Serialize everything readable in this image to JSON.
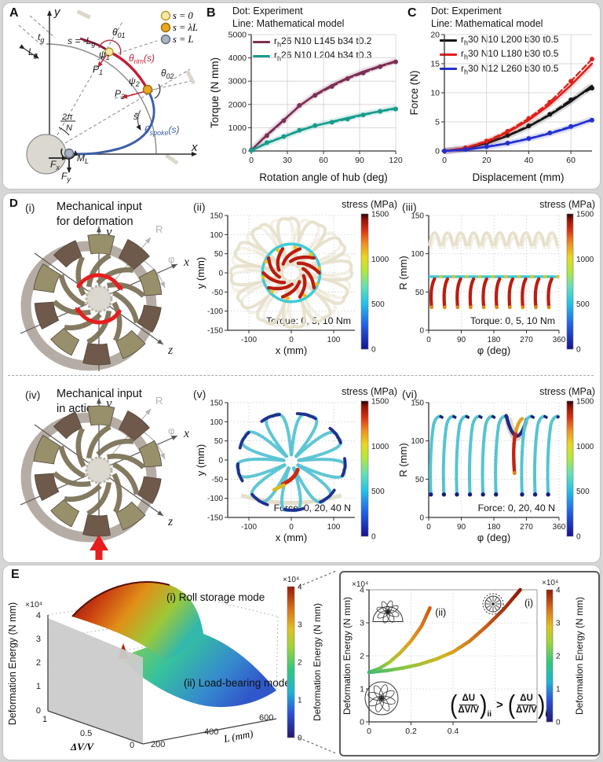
{
  "panels": {
    "A": {
      "label": "A",
      "legend": [
        {
          "color": "#f6e8a6",
          "edge": "#b89a28",
          "label": "s = 0"
        },
        {
          "color": "#eaa71f",
          "edge": "#9a6a10",
          "label": "s = λL"
        },
        {
          "color": "#a9b2c0",
          "edge": "#5f6b80",
          "label": "s = L"
        }
      ],
      "labels": {
        "x_axis": "x",
        "y_axis": "y",
        "tg": {
          "m": "t",
          "s": "g"
        },
        "Lg": {
          "m": "L",
          "s": "g"
        },
        "s_minus": {
          "m": "s = -L",
          "s": "g"
        },
        "theta01": {
          "m": "θ",
          "s": "01"
        },
        "psi1": {
          "m": "ψ",
          "s": "1"
        },
        "P1": {
          "m": "P",
          "s": "1"
        },
        "theta_rim": {
          "m": "θ",
          "s": "rim",
          "r": "(s)"
        },
        "psi2": {
          "m": "ψ",
          "s": "2"
        },
        "theta02": {
          "m": "θ",
          "s": "02"
        },
        "P2": {
          "m": "P",
          "s": "2"
        },
        "s_tilde": "s̃",
        "theta_spoke": {
          "m": "θ",
          "s": "spoke",
          "r": "(s)"
        },
        "frac_num": "2π",
        "frac_den": "N",
        "Fx": {
          "m": "F",
          "s": "x"
        },
        "ML": {
          "m": "M",
          "s": "L"
        },
        "Fy": {
          "m": "F",
          "s": "y"
        }
      }
    },
    "B": {
      "label": "B",
      "note1": "Dot: Experiment",
      "note2": "Line: Mathematical model",
      "legend": [
        {
          "pre": "r",
          "sub": "h",
          "rest": "26 N10 L145 b34 t0.2"
        },
        {
          "pre": "r",
          "sub": "h",
          "rest": "26 N10 L204 b34 t0.3"
        }
      ]
    },
    "C": {
      "label": "C",
      "note1": "Dot: Experiment",
      "note2": "Line: Mathematical model",
      "legend": [
        {
          "pre": "r",
          "sub": "h",
          "rest": "30 N10 L200 b30 t0.5"
        },
        {
          "pre": "r",
          "sub": "h",
          "rest": "30 N10 L180 b30 t0.5"
        },
        {
          "pre": "r",
          "sub": "h",
          "rest": "30 N12 L260 b30 t0.5"
        }
      ]
    },
    "D": {
      "label": "D",
      "stress_label": "stress (MPa)",
      "axes": {
        "x": "x",
        "y": "y",
        "z": "z",
        "R": "R",
        "phi": "φ"
      },
      "rows": [
        {
          "tag": "(i)",
          "title1": "Mechanical input",
          "title2": "for deformation"
        },
        {
          "tag": "(iv)",
          "title1": "Mechanical input",
          "title2": "in action"
        }
      ],
      "plot_tags": {
        "ii": "(ii)",
        "iii": "(iii)",
        "v": "(v)",
        "vi": "(vi)"
      }
    },
    "E": {
      "label": "E",
      "formula": {
        "lpar": "(",
        "rpar": ")",
        "num": "ΔU",
        "den": "ΔV/V",
        "sub_left": "ii",
        "gt": ">",
        "sub_right": "i"
      }
    }
  },
  "chart_data": [
    {
      "id": "B",
      "type": "line",
      "xlabel": "Rotation angle of hub (deg)",
      "ylabel": "Torque (N mm)",
      "xlim": [
        0,
        120
      ],
      "ylim": [
        0,
        5000
      ],
      "xticks": [
        0,
        30,
        60,
        90,
        120
      ],
      "yticks": [
        0,
        1000,
        2000,
        3000,
        4000,
        5000
      ],
      "series": [
        {
          "name": "rh26 N10 L145 b34 t0.2 model",
          "color": "#7c2f55",
          "style": "solid",
          "band": true,
          "x": [
            0,
            13,
            27,
            40,
            53,
            67,
            80,
            93,
            107,
            120
          ],
          "y": [
            30,
            690,
            1330,
            1930,
            2420,
            2820,
            3140,
            3410,
            3650,
            3860
          ]
        },
        {
          "name": "rh26 N10 L145 b34 t0.2 experiment",
          "color": "#7c2f55",
          "style": "dash",
          "x": [
            0,
            13,
            27,
            40,
            53,
            67,
            80,
            93,
            107,
            120
          ],
          "y": [
            40,
            660,
            1300,
            1960,
            2390,
            2770,
            3110,
            3350,
            3620,
            3830
          ]
        },
        {
          "name": "rh26 N10 L204 b34 t0.3 model",
          "color": "#189c8c",
          "style": "solid",
          "band": true,
          "x": [
            0,
            13,
            27,
            40,
            53,
            67,
            80,
            93,
            107,
            120
          ],
          "y": [
            20,
            330,
            610,
            865,
            1080,
            1260,
            1420,
            1570,
            1710,
            1840
          ]
        },
        {
          "name": "rh26 N10 L204 b34 t0.3 experiment",
          "color": "#189c8c",
          "style": "dash",
          "x": [
            0,
            13,
            27,
            40,
            53,
            67,
            80,
            93,
            107,
            120
          ],
          "y": [
            25,
            360,
            620,
            890,
            1095,
            1235,
            1370,
            1545,
            1700,
            1805
          ]
        }
      ]
    },
    {
      "id": "C",
      "type": "line",
      "xlabel": "Displacement (mm)",
      "ylabel": "Force (N)",
      "xlim": [
        0,
        70
      ],
      "ylim": [
        0,
        20
      ],
      "xticks": [
        0,
        20,
        40,
        60
      ],
      "yticks": [
        0,
        5,
        10,
        15,
        20
      ],
      "series": [
        {
          "name": "rh30 N10 L200 b30 t0.5 model",
          "color": "#151515",
          "style": "solid",
          "band": true,
          "x": [
            0,
            10,
            20,
            30,
            40,
            50,
            60,
            70
          ],
          "y": [
            0,
            0.4,
            1.3,
            2.6,
            4.2,
            6.2,
            8.5,
            11.2
          ]
        },
        {
          "name": "rh30 N10 L200 b30 t0.5 experiment",
          "color": "#151515",
          "style": "dash",
          "x": [
            0,
            10,
            20,
            30,
            40,
            50,
            60,
            70
          ],
          "y": [
            0,
            0.45,
            1.35,
            2.7,
            4.3,
            6.3,
            8.8,
            10.8
          ]
        },
        {
          "name": "rh30 N10 L180 b30 t0.5 model",
          "color": "#df1f1a",
          "style": "solid",
          "band": true,
          "x": [
            0,
            10,
            20,
            30,
            40,
            50,
            60,
            70
          ],
          "y": [
            0,
            0.5,
            1.6,
            3.2,
            5.3,
            8.0,
            11.3,
            15.0
          ]
        },
        {
          "name": "rh30 N10 L180 b30 t0.5 experiment",
          "color": "#df1f1a",
          "style": "dash",
          "x": [
            0,
            10,
            20,
            30,
            40,
            50,
            60,
            70
          ],
          "y": [
            0,
            0.55,
            1.7,
            3.4,
            5.6,
            8.4,
            12.0,
            15.8
          ]
        },
        {
          "name": "rh30 N12 L260 b30 t0.5 model",
          "color": "#2330cf",
          "style": "solid",
          "band": true,
          "x": [
            0,
            10,
            20,
            30,
            40,
            50,
            60,
            70
          ],
          "y": [
            0,
            0.2,
            0.7,
            1.3,
            2.1,
            3.0,
            4.1,
            5.4
          ]
        },
        {
          "name": "rh30 N12 L260 b30 t0.5 experiment",
          "color": "#2330cf",
          "style": "dash",
          "x": [
            0,
            10,
            20,
            30,
            40,
            50,
            60,
            70
          ],
          "y": [
            0,
            0.25,
            0.75,
            1.35,
            2.15,
            3.1,
            4.2,
            5.3
          ]
        }
      ]
    },
    {
      "id": "Dii",
      "type": "line",
      "kind": "stress-map",
      "xlabel": "x (mm)",
      "ylabel": "y (mm)",
      "xlim": [
        -150,
        150
      ],
      "ylim": [
        -150,
        150
      ],
      "xticks": [
        -100,
        0,
        100
      ],
      "yticks": [
        -150,
        -100,
        -50,
        0,
        50,
        100,
        150
      ],
      "annotation": "Torque: 0, 5, 10 Nm",
      "colorbar": {
        "label": "stress (MPa)",
        "lim": [
          0,
          1500
        ],
        "ticks": [
          0,
          500,
          1000,
          1500
        ]
      },
      "series": []
    },
    {
      "id": "Diii",
      "type": "line",
      "kind": "stress-map",
      "xlabel": "φ (deg)",
      "ylabel": "R (mm)",
      "xlim": [
        0,
        360
      ],
      "ylim": [
        0,
        150
      ],
      "xticks": [
        0,
        90,
        180,
        270,
        360
      ],
      "yticks": [
        0,
        50,
        100,
        150
      ],
      "annotation": "Torque: 0, 5, 10 Nm",
      "colorbar": {
        "label": "stress (MPa)",
        "lim": [
          0,
          1500
        ],
        "ticks": [
          0,
          500,
          1000,
          1500
        ]
      },
      "series": []
    },
    {
      "id": "Dv",
      "type": "line",
      "kind": "stress-map",
      "xlabel": "x (mm)",
      "ylabel": "y (mm)",
      "xlim": [
        -150,
        150
      ],
      "ylim": [
        -150,
        150
      ],
      "xticks": [
        -100,
        0,
        100
      ],
      "yticks": [
        -150,
        -100,
        -50,
        0,
        50,
        100,
        150
      ],
      "annotation": "Force: 0, 20, 40 N",
      "colorbar": {
        "label": "stress (MPa)",
        "lim": [
          0,
          1500
        ],
        "ticks": [
          0,
          500,
          1000,
          1500
        ]
      },
      "series": []
    },
    {
      "id": "Dvi",
      "type": "line",
      "kind": "stress-map",
      "xlabel": "φ (deg)",
      "ylabel": "R (mm)",
      "xlim": [
        0,
        360
      ],
      "ylim": [
        0,
        150
      ],
      "xticks": [
        0,
        90,
        180,
        270,
        360
      ],
      "yticks": [
        0,
        50,
        100,
        150
      ],
      "annotation": "Force: 0, 20, 40 N",
      "colorbar": {
        "label": "stress (MPa)",
        "lim": [
          0,
          1500
        ],
        "ticks": [
          0,
          500,
          1000,
          1500
        ]
      },
      "series": []
    },
    {
      "id": "E_surface",
      "type": "area",
      "kind": "3d-surface",
      "zlabel": "Deformation Energy (N mm)",
      "z_multiplier": "×10⁴",
      "zticks": [
        0,
        1,
        2,
        3,
        4
      ],
      "x_axis": {
        "label": "ΔV/V",
        "ticks": [
          1,
          0.5,
          0
        ]
      },
      "y_axis": {
        "label": "L (mm)",
        "ticks": [
          200,
          400,
          600
        ]
      },
      "surfaces": [
        {
          "name": "(i) Roll storage mode"
        },
        {
          "name": "(ii) Load-bearing mode"
        }
      ],
      "colorbar": {
        "label": "Deformation Energy (N mm)",
        "multiplier": "×10⁴",
        "lim": [
          0,
          4
        ],
        "ticks": [
          0,
          1,
          2,
          3,
          4
        ]
      }
    },
    {
      "id": "E_inset",
      "type": "line",
      "ylabel": "Deformation Energy (N mm)",
      "y_multiplier": "×10⁴",
      "xlim": [
        0,
        0.8
      ],
      "ylim": [
        0,
        4
      ],
      "xticks": [
        0,
        0.2,
        0.4
      ],
      "xgrid": [
        0.2,
        0.4,
        0.6
      ],
      "yticks": [
        0,
        1,
        2,
        3,
        4
      ],
      "ygrid": [
        1,
        2,
        3
      ],
      "series": [
        {
          "name": "(i)",
          "gradient": [
            "#3cb878",
            "#8fc83c",
            "#d8b020",
            "#d06018",
            "#8f1605"
          ],
          "x": [
            0,
            0.08,
            0.16,
            0.24,
            0.32,
            0.4,
            0.48,
            0.56,
            0.64,
            0.72
          ],
          "y": [
            1.5,
            1.55,
            1.63,
            1.74,
            1.9,
            2.12,
            2.45,
            2.9,
            3.4,
            4.0
          ]
        },
        {
          "name": "(ii)",
          "gradient": [
            "#3cb878",
            "#a8c832",
            "#e0a020",
            "#d05a12"
          ],
          "x": [
            0,
            0.05,
            0.1,
            0.15,
            0.2,
            0.25,
            0.29
          ],
          "y": [
            1.5,
            1.62,
            1.82,
            2.1,
            2.45,
            2.9,
            3.45
          ]
        }
      ],
      "colorbar": {
        "label": "Deformation Energy (N mm)",
        "multiplier": "×10⁴",
        "lim": [
          0,
          4
        ],
        "ticks": [
          0,
          1,
          2,
          3,
          4
        ]
      }
    }
  ]
}
